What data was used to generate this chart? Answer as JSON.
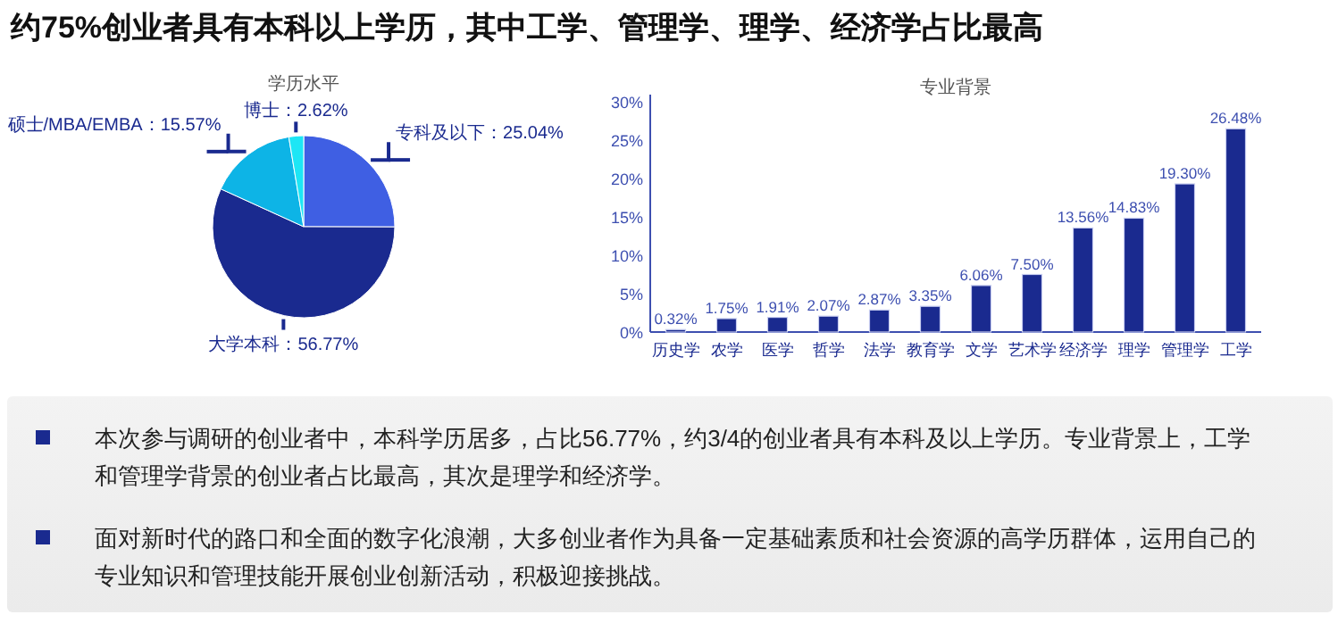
{
  "chart_data": [
    {
      "type": "other",
      "title": "约75%创业者具有本科以上学历，其中工学、管理学、理学、经济学占比最高"
    },
    {
      "type": "pie",
      "title": "学历水平",
      "categories": [
        "专科及以下",
        "大学本科",
        "硕士/MBA/EMBA",
        "博士"
      ],
      "values": [
        25.04,
        56.77,
        15.57,
        2.62
      ],
      "colors": [
        "#3f5fe3",
        "#1a2a8f",
        "#0db4e6",
        "#1de6f5"
      ],
      "value_labels": [
        "：25.04%",
        "：56.77%",
        "：15.57%",
        "：2.62%"
      ]
    },
    {
      "type": "bar",
      "title": "专业背景",
      "categories": [
        "历史学",
        "农学",
        "医学",
        "哲学",
        "法学",
        "教育学",
        "文学",
        "艺术学",
        "经济学",
        "理学",
        "管理学",
        "工学"
      ],
      "series": [
        {
          "color": "#1a2a8f",
          "values": [
            0.32,
            1.75,
            1.91,
            2.07,
            2.87,
            3.35,
            6.06,
            7.5,
            13.56,
            14.83,
            19.3,
            26.48
          ]
        }
      ],
      "value_labels": [
        "0.32%",
        "1.75%",
        "1.91%",
        "2.07%",
        "2.87%",
        "3.35%",
        "6.06%",
        "7.50%",
        "13.56%",
        "14.83%",
        "19.30%",
        "26.48%"
      ],
      "ylim": [
        0,
        30
      ],
      "yticks": [
        {
          "value": 0,
          "label": "0%"
        },
        {
          "value": 5,
          "label": "5%"
        },
        {
          "value": 10,
          "label": "10%"
        },
        {
          "value": 15,
          "label": "15%"
        },
        {
          "value": 20,
          "label": "20%"
        },
        {
          "value": 25,
          "label": "25%"
        },
        {
          "value": 30,
          "label": "30%"
        }
      ]
    },
    {
      "type": "other",
      "annotations": [
        "本次参与调研的创业者中，本科学历居多，占比56.77%，约3/4的创业者具有本科及以上学历。专业背景上，工学和管理学背景的创业者占比最高，其次是理学和经济学。",
        "面对新时代的路口和全面的数字化浪潮，大多创业者作为具备一定基础素质和社会资源的高学历群体，运用自己的专业知识和管理技能开展创业创新活动，积极迎接挑战。"
      ]
    }
  ]
}
